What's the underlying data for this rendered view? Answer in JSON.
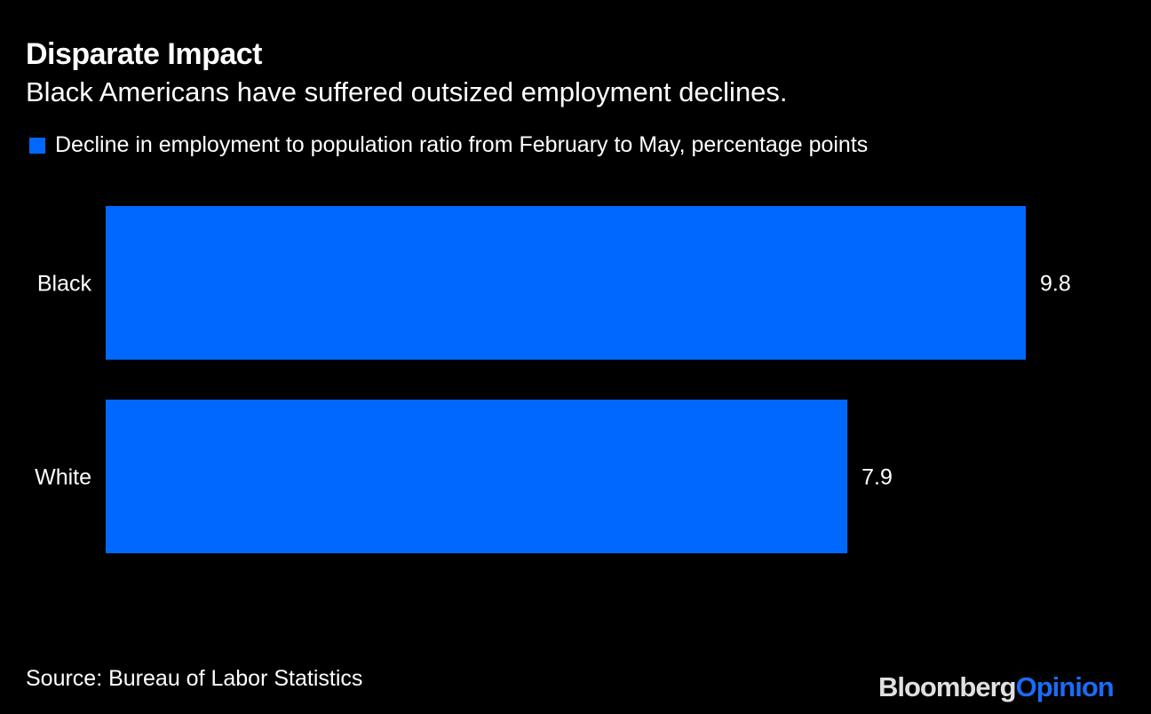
{
  "title": "Disparate Impact",
  "subtitle": "Black Americans have suffered outsized employment declines.",
  "legend": {
    "label": "Decline in employment to population ratio from February to May, percentage points",
    "color": "#0068ff"
  },
  "source": "Source: Bureau of Labor Statistics",
  "logo": {
    "part1": "Bloomberg",
    "part2": "Opinion",
    "color1": "#e0e0e0",
    "color2": "#1a6cf5"
  },
  "chart_data": {
    "type": "bar",
    "orientation": "horizontal",
    "categories": [
      "Black",
      "White"
    ],
    "values": [
      9.8,
      7.9
    ],
    "data_labels": [
      "9.8",
      "7.9"
    ],
    "xlim": [
      0,
      9.8
    ],
    "grid": false,
    "legend_placement": "top-left",
    "bar_color": "#0068ff"
  }
}
